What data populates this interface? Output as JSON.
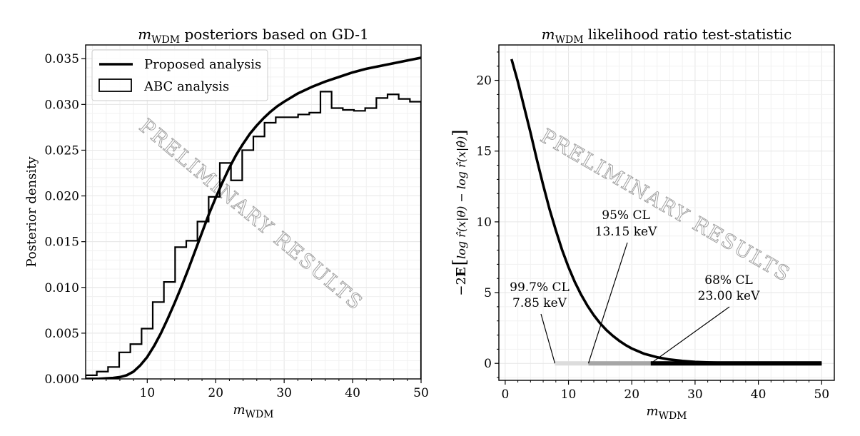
{
  "chart_data": [
    {
      "type": "line+step",
      "title": "m_WDM posteriors based on GD-1",
      "title_math": "m",
      "title_sub": "WDM",
      "title_rest": " posteriors based on GD-1",
      "xlabel_math": "m",
      "xlabel_sub": "WDM",
      "ylabel": "Posterior density",
      "xlim": [
        1,
        50
      ],
      "ylim": [
        0,
        0.0365
      ],
      "xticks": [
        10,
        20,
        30,
        40,
        50
      ],
      "yticks": [
        0.0,
        0.005,
        0.01,
        0.015,
        0.02,
        0.025,
        0.03,
        0.035
      ],
      "ytick_labels": [
        "0.000",
        "0.005",
        "0.010",
        "0.015",
        "0.020",
        "0.025",
        "0.030",
        "0.035"
      ],
      "grid": true,
      "legend_position": "top-left",
      "series": [
        {
          "name": "Proposed analysis",
          "style": "line",
          "x": [
            1,
            3,
            5,
            6,
            7,
            8,
            9,
            10,
            11,
            12,
            13,
            14,
            15,
            16,
            17,
            18,
            19,
            20,
            21,
            22,
            23,
            24,
            25,
            26,
            27,
            28,
            29,
            30,
            32,
            34,
            36,
            38,
            40,
            42,
            44,
            46,
            48,
            50
          ],
          "y": [
            0.0,
            2e-05,
            0.0001,
            0.0002,
            0.0004,
            0.0008,
            0.0015,
            0.0024,
            0.0036,
            0.005,
            0.0066,
            0.0083,
            0.0101,
            0.012,
            0.014,
            0.016,
            0.018,
            0.0198,
            0.0215,
            0.0231,
            0.0245,
            0.0257,
            0.0268,
            0.0277,
            0.0285,
            0.0292,
            0.0298,
            0.0303,
            0.0312,
            0.0319,
            0.0325,
            0.033,
            0.0335,
            0.0339,
            0.0342,
            0.0345,
            0.0348,
            0.0351
          ]
        },
        {
          "name": "ABC analysis",
          "style": "step",
          "edges": [
            1,
            2.63,
            4.27,
            5.9,
            7.53,
            9.17,
            10.8,
            12.43,
            14.07,
            15.7,
            17.33,
            18.97,
            20.6,
            22.23,
            23.87,
            25.5,
            27.13,
            28.77,
            30.4,
            32.03,
            33.67,
            35.3,
            36.93,
            38.57,
            40.2,
            41.83,
            43.47,
            45.1,
            46.73,
            48.37,
            50
          ],
          "values": [
            0.0004,
            0.0008,
            0.0013,
            0.0029,
            0.0038,
            0.0055,
            0.0084,
            0.0106,
            0.0144,
            0.0151,
            0.0172,
            0.0199,
            0.0236,
            0.0217,
            0.025,
            0.0265,
            0.028,
            0.0286,
            0.0286,
            0.0289,
            0.0291,
            0.0314,
            0.0296,
            0.0294,
            0.0293,
            0.0296,
            0.0307,
            0.0311,
            0.0306,
            0.0303
          ]
        }
      ],
      "watermark": "PRELIMINARY RESULTS"
    },
    {
      "type": "line",
      "title_math": "m",
      "title_sub": "WDM",
      "title_rest": " likelihood ratio test-statistic",
      "xlabel_math": "m",
      "xlabel_sub": "WDM",
      "ylabel_prefix": "−2",
      "ylabel_E": "E",
      "ylabel_bracket": "log r̂(x|θ) − log r̂(x|θ̂)",
      "xlim": [
        -1,
        52
      ],
      "ylim": [
        -1.2,
        22.5
      ],
      "xticks": [
        0,
        10,
        20,
        30,
        40,
        50
      ],
      "yticks": [
        0,
        5,
        10,
        15,
        20
      ],
      "grid": true,
      "series": [
        {
          "style": "line",
          "x": [
            1,
            2,
            3,
            4,
            5,
            6,
            7,
            8,
            9,
            10,
            11,
            12,
            13,
            14,
            15,
            16,
            17,
            18,
            19,
            20,
            22,
            24,
            26,
            28,
            30,
            33,
            36,
            40,
            45,
            50
          ],
          "y": [
            21.5,
            19.9,
            18.1,
            16.3,
            14.4,
            12.6,
            10.9,
            9.4,
            8.0,
            6.8,
            5.75,
            4.85,
            4.07,
            3.4,
            2.83,
            2.35,
            1.95,
            1.6,
            1.3,
            1.05,
            0.67,
            0.43,
            0.27,
            0.17,
            0.1,
            0.05,
            0.02,
            0.0,
            0.0,
            0.0
          ]
        }
      ],
      "intervals": [
        {
          "label": "99.7% CL",
          "value": "7.85 keV",
          "from": 7.85,
          "to": 50,
          "color": "#dcdcdc"
        },
        {
          "label": "95% CL",
          "value": "13.15 keV",
          "from": 13.15,
          "to": 50,
          "color": "#a6a6a6"
        },
        {
          "label": "68% CL",
          "value": "23.00 keV",
          "from": 23.0,
          "to": 50,
          "color": "#000000"
        }
      ],
      "watermark": "PRELIMINARY RESULTS"
    }
  ]
}
